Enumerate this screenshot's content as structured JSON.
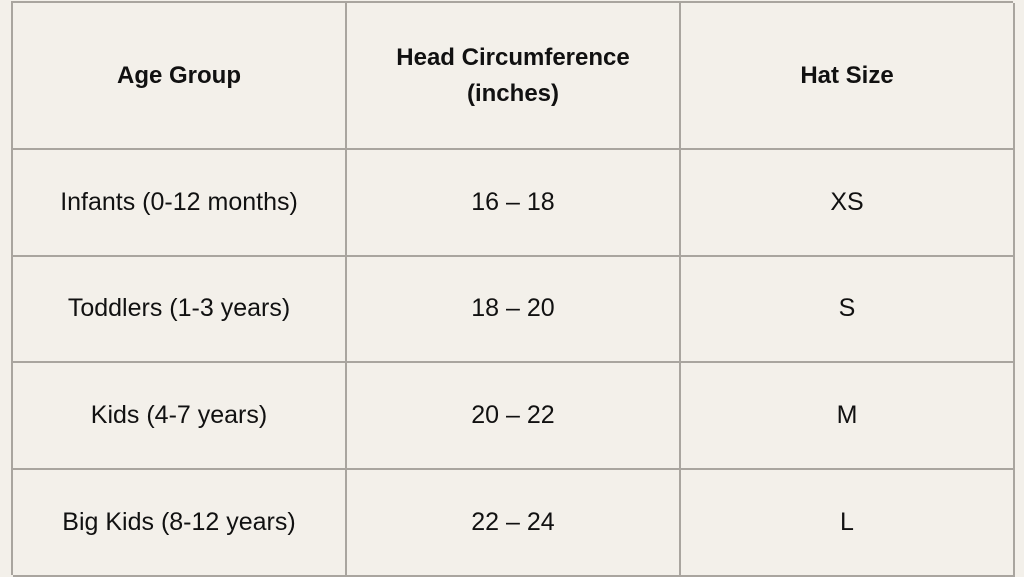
{
  "table": {
    "header": [
      "Age Group",
      "Head Circumference (inches)",
      "Hat Size"
    ],
    "rows": [
      [
        "Infants (0-12 months)",
        "16 – 18",
        "XS"
      ],
      [
        "Toddlers (1-3 years)",
        "18 – 20",
        "S"
      ],
      [
        "Kids (4-7 years)",
        "20 – 22",
        "M"
      ],
      [
        "Big Kids (8-12 years)",
        "22 – 24",
        "L"
      ]
    ]
  }
}
